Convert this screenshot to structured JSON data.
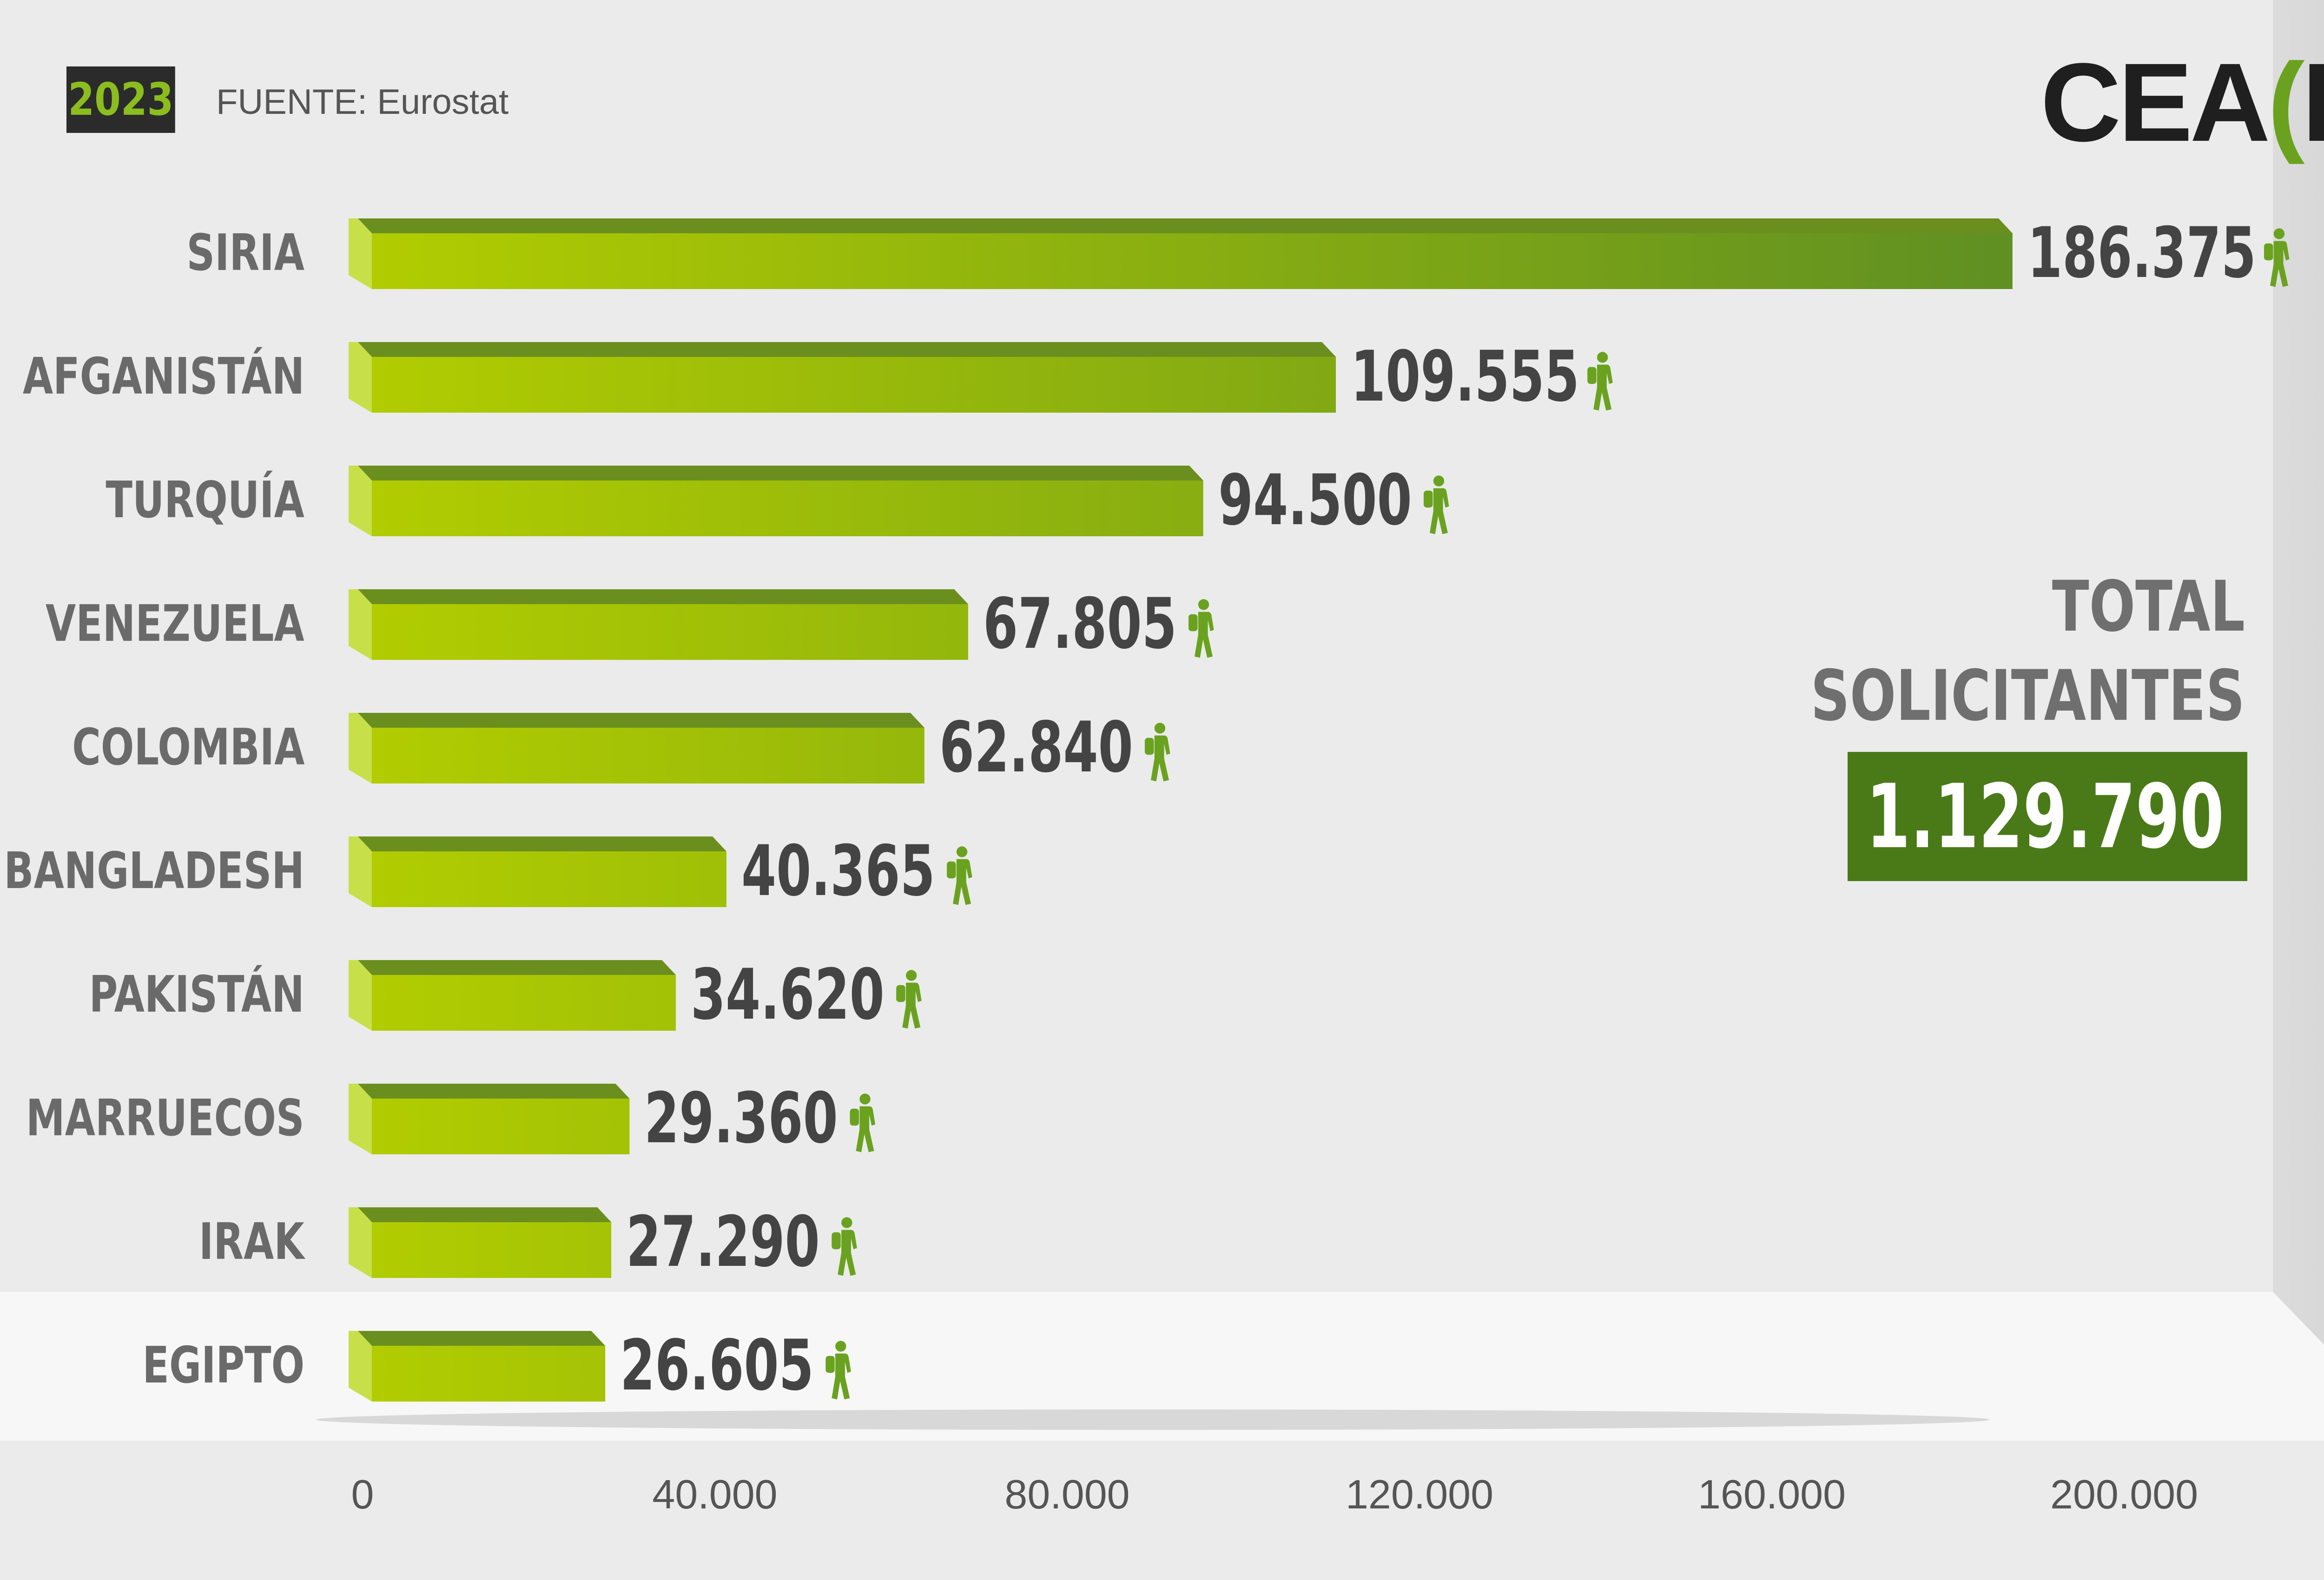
{
  "header": {
    "year": "2023",
    "source": "FUENTE: Eurostat",
    "logo_text": "CEA",
    "logo_letter": "R",
    "logo_open": "(",
    "logo_close": ")"
  },
  "total": {
    "title_line1": "TOTAL",
    "title_line2": "SOLICITANTES",
    "value": "1.129.790"
  },
  "icons": {
    "person": "hiker-person-icon"
  },
  "colors": {
    "bar_light": "#b0cc00",
    "bar_dark": "#5f8f22",
    "icon_green": "#6aa220",
    "total_box": "#4a7a18"
  },
  "chart_data": {
    "type": "bar",
    "orientation": "horizontal",
    "categories": [
      "SIRIA",
      "AFGANISTÁN",
      "TURQUÍA",
      "VENEZUELA",
      "COLOMBIA",
      "BANGLADESH",
      "PAKISTÁN",
      "MARRUECOS",
      "IRAK",
      "EGIPTO"
    ],
    "values": [
      186375,
      109555,
      94500,
      67805,
      62840,
      40365,
      34620,
      29360,
      27290,
      26605
    ],
    "value_labels": [
      "186.375",
      "109.555",
      "94.500",
      "67.805",
      "62.840",
      "40.365",
      "34.620",
      "29.360",
      "27.290",
      "26.605"
    ],
    "xlim": [
      0,
      200000
    ],
    "ticks": [
      0,
      40000,
      80000,
      120000,
      160000,
      200000
    ],
    "tick_labels": [
      "0",
      "40.000",
      "80.000",
      "120.000",
      "160.000",
      "200.000"
    ],
    "grid": false,
    "legend": "none"
  }
}
